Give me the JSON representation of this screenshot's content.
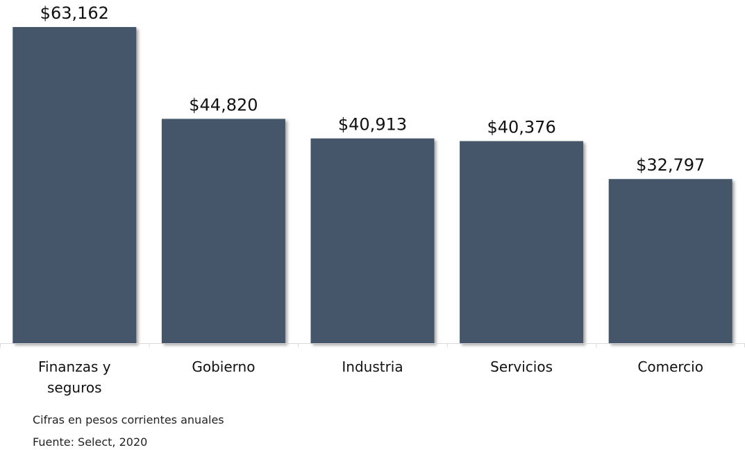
{
  "chart_data": {
    "type": "bar",
    "categories": [
      "Finanzas y seguros",
      "Gobierno",
      "Industria",
      "Servicios",
      "Comercio"
    ],
    "category_lines": [
      [
        "Finanzas y",
        "seguros"
      ],
      [
        "Gobierno"
      ],
      [
        "Industria"
      ],
      [
        "Servicios"
      ],
      [
        "Comercio"
      ]
    ],
    "values": [
      63162,
      44820,
      40913,
      40376,
      32797
    ],
    "value_labels": [
      "$63,162",
      "$44,820",
      "$40,913",
      "$40,376",
      "$32,797"
    ],
    "title": "",
    "xlabel": "",
    "ylabel": "",
    "ylim": [
      0,
      63162
    ],
    "grid": false,
    "legend": "none",
    "bar_color": "#44546a",
    "axis_color": "#d9d9d9"
  },
  "notes": {
    "units": "Cifras en pesos corrientes anuales",
    "source": "Fuente: Select, 2020"
  }
}
